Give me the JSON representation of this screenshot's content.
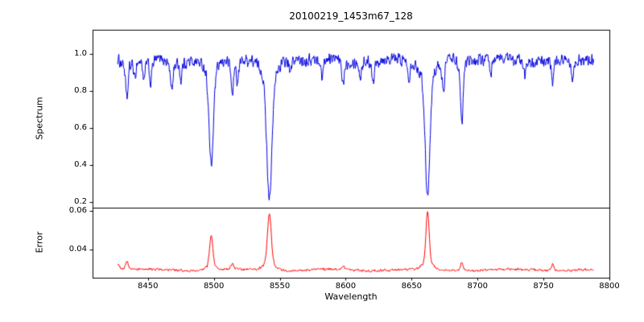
{
  "figure": {
    "title": "20100219_1453m67_128",
    "xlabel": "Wavelength",
    "ylabel_top": "Spectrum",
    "ylabel_bottom": "Error",
    "background_color": "#ffffff",
    "axis_color": "#000000"
  },
  "chart_data": [
    {
      "type": "line",
      "panel": "top",
      "title": "20100219_1453m67_128",
      "xlabel": "Wavelength",
      "ylabel": "Spectrum",
      "legend": "none",
      "grid": false,
      "color": "#0000dd",
      "xlim": [
        8408,
        8800
      ],
      "ylim": [
        0.17,
        1.13
      ],
      "xticks": [
        8450,
        8500,
        8550,
        8600,
        8650,
        8700,
        8750,
        8800
      ],
      "yticks": [
        0.2,
        0.4,
        0.6,
        0.8,
        1.0
      ],
      "x_data_range": [
        8427,
        8788
      ],
      "continuum": 0.97,
      "noise_amp": 0.033,
      "absorption_lines": [
        {
          "center": 8434.0,
          "depth": 0.21,
          "width": 0.9
        },
        {
          "center": 8440.0,
          "depth": 0.1,
          "width": 0.7
        },
        {
          "center": 8447.0,
          "depth": 0.12,
          "width": 0.7
        },
        {
          "center": 8452.0,
          "depth": 0.13,
          "width": 0.8
        },
        {
          "center": 8468.0,
          "depth": 0.16,
          "width": 0.9
        },
        {
          "center": 8475.0,
          "depth": 0.1,
          "width": 0.7
        },
        {
          "center": 8498.0,
          "depth": 0.58,
          "width": 1.6
        },
        {
          "center": 8514.0,
          "depth": 0.18,
          "width": 0.9
        },
        {
          "center": 8518.0,
          "depth": 0.12,
          "width": 0.7
        },
        {
          "center": 8542.1,
          "depth": 0.75,
          "width": 2.0
        },
        {
          "center": 8558.0,
          "depth": 0.08,
          "width": 0.7
        },
        {
          "center": 8582.0,
          "depth": 0.1,
          "width": 0.8
        },
        {
          "center": 8598.0,
          "depth": 0.13,
          "width": 0.8
        },
        {
          "center": 8611.0,
          "depth": 0.09,
          "width": 0.7
        },
        {
          "center": 8621.0,
          "depth": 0.12,
          "width": 0.8
        },
        {
          "center": 8648.0,
          "depth": 0.09,
          "width": 0.7
        },
        {
          "center": 8662.1,
          "depth": 0.72,
          "width": 1.8
        },
        {
          "center": 8674.0,
          "depth": 0.18,
          "width": 0.9
        },
        {
          "center": 8688.0,
          "depth": 0.36,
          "width": 1.0
        },
        {
          "center": 8710.0,
          "depth": 0.1,
          "width": 0.7
        },
        {
          "center": 8736.0,
          "depth": 0.09,
          "width": 0.7
        },
        {
          "center": 8757.0,
          "depth": 0.13,
          "width": 0.8
        },
        {
          "center": 8772.0,
          "depth": 0.1,
          "width": 0.7
        }
      ]
    },
    {
      "type": "line",
      "panel": "bottom",
      "ylabel": "Error",
      "legend": "none",
      "grid": false,
      "color": "#ff0000",
      "xlim": [
        8408,
        8800
      ],
      "ylim": [
        0.0255,
        0.0615
      ],
      "yticks": [
        0.04,
        0.06
      ],
      "x_data_range": [
        8427,
        8788
      ],
      "baseline": 0.0295,
      "noise_amp": 0.0007,
      "error_peaks": [
        {
          "center": 8427.0,
          "height": 0.003,
          "width": 1.5
        },
        {
          "center": 8434.0,
          "height": 0.004,
          "width": 1.0
        },
        {
          "center": 8498.0,
          "height": 0.018,
          "width": 1.2
        },
        {
          "center": 8514.0,
          "height": 0.003,
          "width": 0.9
        },
        {
          "center": 8542.1,
          "height": 0.029,
          "width": 1.4
        },
        {
          "center": 8598.0,
          "height": 0.002,
          "width": 0.9
        },
        {
          "center": 8662.1,
          "height": 0.0295,
          "width": 1.2
        },
        {
          "center": 8688.0,
          "height": 0.004,
          "width": 0.9
        },
        {
          "center": 8757.0,
          "height": 0.003,
          "width": 0.9
        }
      ]
    }
  ]
}
